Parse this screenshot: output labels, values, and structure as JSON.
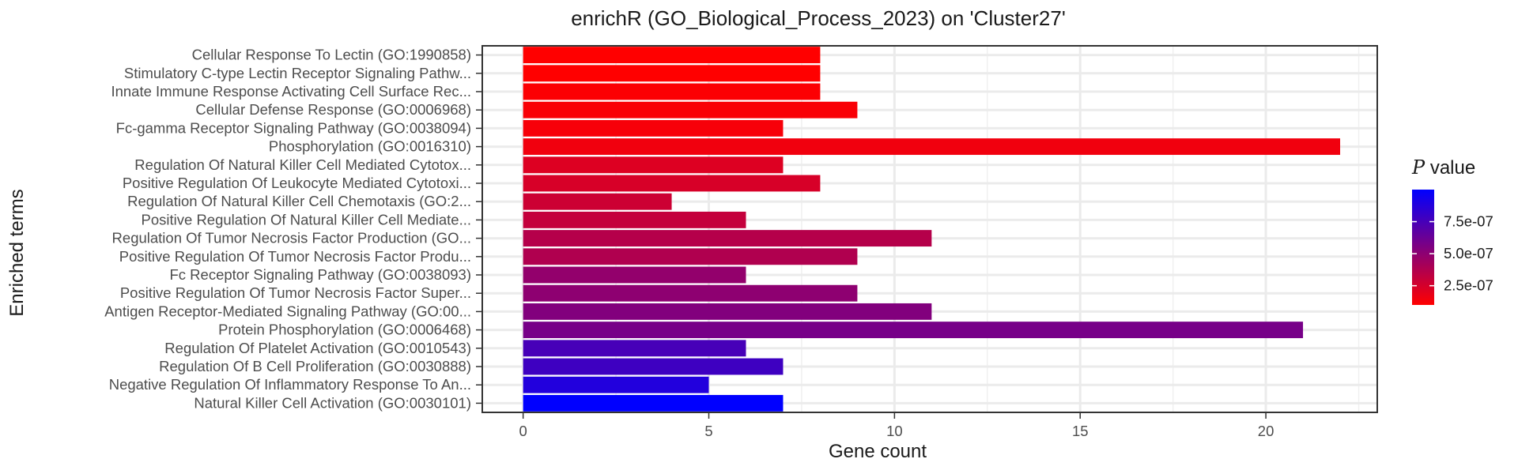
{
  "chart_data": {
    "type": "bar",
    "orientation": "horizontal",
    "title": "enrichR (GO_Biological_Process_2023) on 'Cluster27'",
    "xlabel": "Gene count",
    "ylabel": "Enriched terms",
    "xlim": [
      -1.1,
      23.0
    ],
    "xticks": [
      0,
      5,
      10,
      15,
      20
    ],
    "grid": true,
    "legend": {
      "title_symbol": "P",
      "title_rest": " value",
      "placement": "right",
      "tick_labels": [
        "7.5e-07",
        "5.0e-07",
        "2.5e-07"
      ],
      "tick_values": [
        7.5e-07,
        5e-07,
        2.5e-07
      ],
      "range": [
        1e-07,
        1e-06
      ],
      "low_color": "#ff0000",
      "high_color": "#0000ff"
    },
    "categories": [
      "Cellular Response To Lectin (GO:1990858)",
      "Stimulatory C-type Lectin Receptor Signaling Pathw...",
      "Innate Immune Response Activating Cell Surface Rec...",
      "Cellular Defense Response (GO:0006968)",
      "Fc-gamma Receptor Signaling Pathway (GO:0038094)",
      "Phosphorylation (GO:0016310)",
      "Regulation Of Natural Killer Cell Mediated Cytotox...",
      "Positive Regulation Of Leukocyte Mediated Cytotoxi...",
      "Regulation Of Natural Killer Cell Chemotaxis (GO:2...",
      "Positive Regulation Of Natural Killer Cell Mediate...",
      "Regulation Of Tumor Necrosis Factor Production (GO...",
      "Positive Regulation Of Tumor Necrosis Factor Produ...",
      "Fc Receptor Signaling Pathway (GO:0038093)",
      "Positive Regulation Of Tumor Necrosis Factor Super...",
      "Antigen Receptor-Mediated Signaling Pathway (GO:00...",
      "Protein Phosphorylation (GO:0006468)",
      "Regulation Of Platelet Activation (GO:0010543)",
      "Regulation Of B Cell Proliferation (GO:0030888)",
      "Negative Regulation Of Inflammatory Response To An...",
      "Natural Killer Cell Activation (GO:0030101)"
    ],
    "values": [
      8,
      8,
      8,
      9,
      7,
      22,
      7,
      8,
      4,
      6,
      11,
      9,
      6,
      9,
      11,
      21,
      6,
      7,
      5,
      7
    ],
    "p_values": [
      1e-07,
      1e-07,
      1.1e-07,
      1.2e-07,
      1.3e-07,
      1.5e-07,
      2.2e-07,
      2.4e-07,
      2.8e-07,
      3.1e-07,
      3.6e-07,
      3.8e-07,
      4.8e-07,
      5e-07,
      5.4e-07,
      5.8e-07,
      7.5e-07,
      7.8e-07,
      8.8e-07,
      1e-06
    ]
  }
}
